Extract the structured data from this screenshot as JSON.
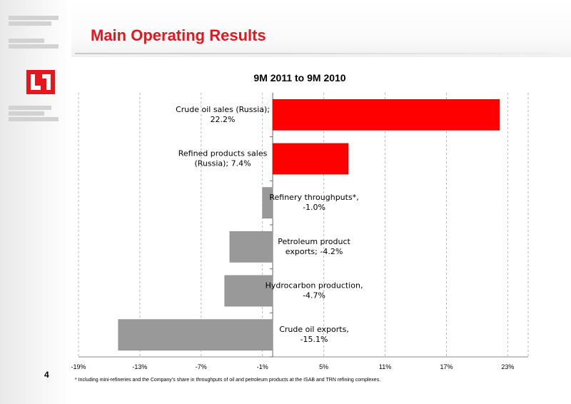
{
  "header": {
    "title": "Main Operating Results",
    "page_number": "4"
  },
  "colors": {
    "accent": "#e8151b",
    "positive_bar": "#ff0000",
    "negative_bar": "#999999",
    "grid": "#a8a8a8"
  },
  "logo": {
    "name": "lukoil-logo",
    "text": "LUK"
  },
  "chart_data": {
    "type": "bar",
    "orientation": "horizontal",
    "title": "9M 2011 to 9M 2010",
    "xlabel": "",
    "ylabel": "",
    "xlim": [
      -19,
      25
    ],
    "x_ticks": [
      -19,
      -13,
      -7,
      -1,
      5,
      11,
      17,
      23
    ],
    "x_tick_labels": [
      "-19%",
      "-13%",
      "-7%",
      "-1%",
      "5%",
      "11%",
      "17%",
      "23%"
    ],
    "grid": true,
    "bars": [
      {
        "label_lines": [
          "Crude oil sales (Russia);",
          "22.2%"
        ],
        "value": 22.2
      },
      {
        "label_lines": [
          "Refined products sales",
          "(Russia); 7.4%"
        ],
        "value": 7.4
      },
      {
        "label_lines": [
          "Refinery throughputs*,",
          "-1.0%"
        ],
        "value": -1.0
      },
      {
        "label_lines": [
          "Petroleum product",
          "exports; -4.2%"
        ],
        "value": -4.2
      },
      {
        "label_lines": [
          "Hydrocarbon production,",
          "-4.7%"
        ],
        "value": -4.7
      },
      {
        "label_lines": [
          "Crude oil exports,",
          "-15.1%"
        ],
        "value": -15.1
      }
    ]
  },
  "footnote": "* Including mini-refineries and the Company’s share in throughputs of oil and petroleum products at the ISAB and TRN refining complexes."
}
